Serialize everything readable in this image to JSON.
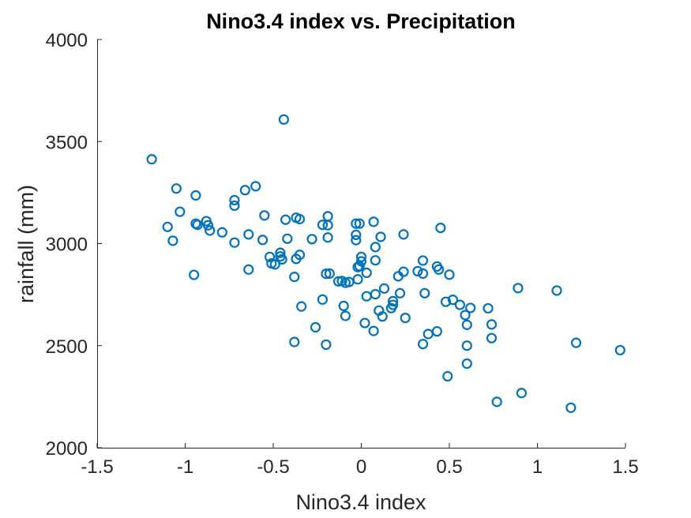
{
  "chart_data": {
    "type": "scatter",
    "title": "Nino3.4 index vs. Precipitation",
    "xlabel": "Nino3.4 index",
    "ylabel": "rainfall (mm)",
    "xlim": [
      -1.5,
      1.5
    ],
    "ylim": [
      2000,
      4000
    ],
    "xticks": [
      -1.5,
      -1,
      -0.5,
      0,
      0.5,
      1,
      1.5
    ],
    "xtick_labels": [
      "-1.5",
      "-1",
      "-0.5",
      "0",
      "0.5",
      "1",
      "1.5"
    ],
    "yticks": [
      2000,
      2500,
      3000,
      3500,
      4000
    ],
    "ytick_labels": [
      "2000",
      "2500",
      "3000",
      "3500",
      "4000"
    ],
    "grid": false,
    "marker": "open-circle",
    "color": "#0072bd",
    "points": [
      [
        -1.19,
        3413
      ],
      [
        -0.44,
        3608
      ],
      [
        -1.05,
        3270
      ],
      [
        -0.94,
        3236
      ],
      [
        -1.03,
        3156
      ],
      [
        -1.1,
        3082
      ],
      [
        -1.07,
        3014
      ],
      [
        -0.95,
        2847
      ],
      [
        -0.94,
        3098
      ],
      [
        -0.93,
        3092
      ],
      [
        -0.88,
        3110
      ],
      [
        -0.87,
        3090
      ],
      [
        -0.86,
        3064
      ],
      [
        -0.79,
        3055
      ],
      [
        -0.72,
        3213
      ],
      [
        -0.72,
        3186
      ],
      [
        -0.72,
        3005
      ],
      [
        -0.66,
        3262
      ],
      [
        -0.6,
        3281
      ],
      [
        -0.64,
        3045
      ],
      [
        -0.56,
        3018
      ],
      [
        -0.55,
        3138
      ],
      [
        -0.64,
        2873
      ],
      [
        -0.52,
        2935
      ],
      [
        -0.51,
        2903
      ],
      [
        -0.49,
        2898
      ],
      [
        -0.46,
        2955
      ],
      [
        -0.46,
        2937
      ],
      [
        -0.45,
        2923
      ],
      [
        -0.43,
        3117
      ],
      [
        -0.42,
        3024
      ],
      [
        -0.37,
        3127
      ],
      [
        -0.35,
        3120
      ],
      [
        -0.37,
        2925
      ],
      [
        -0.35,
        2945
      ],
      [
        -0.38,
        2837
      ],
      [
        -0.34,
        2692
      ],
      [
        -0.38,
        2518
      ],
      [
        -0.28,
        3022
      ],
      [
        -0.26,
        2590
      ],
      [
        -0.22,
        3092
      ],
      [
        -0.22,
        2726
      ],
      [
        -0.2,
        2852
      ],
      [
        -0.18,
        2853
      ],
      [
        -0.19,
        3134
      ],
      [
        -0.19,
        3090
      ],
      [
        -0.19,
        3030
      ],
      [
        -0.2,
        2505
      ],
      [
        -0.13,
        2815
      ],
      [
        -0.11,
        2817
      ],
      [
        -0.09,
        2808
      ],
      [
        -0.07,
        2812
      ],
      [
        -0.1,
        2695
      ],
      [
        -0.09,
        2646
      ],
      [
        -0.03,
        3098
      ],
      [
        -0.03,
        3043
      ],
      [
        -0.03,
        3017
      ],
      [
        -0.01,
        3098
      ],
      [
        -0.02,
        2885
      ],
      [
        -0.01,
        2890
      ],
      [
        0.0,
        2913
      ],
      [
        0.0,
        2935
      ],
      [
        -0.02,
        2825
      ],
      [
        0.03,
        2857
      ],
      [
        0.03,
        2742
      ],
      [
        0.02,
        2611
      ],
      [
        0.07,
        3107
      ],
      [
        0.08,
        2983
      ],
      [
        0.08,
        2918
      ],
      [
        0.08,
        2752
      ],
      [
        0.07,
        2572
      ],
      [
        0.1,
        2672
      ],
      [
        0.11,
        3033
      ],
      [
        0.13,
        2780
      ],
      [
        0.12,
        2643
      ],
      [
        0.17,
        2684
      ],
      [
        0.18,
        2700
      ],
      [
        0.18,
        2718
      ],
      [
        0.21,
        2840
      ],
      [
        0.22,
        2757
      ],
      [
        0.24,
        2862
      ],
      [
        0.24,
        3045
      ],
      [
        0.25,
        2636
      ],
      [
        0.32,
        2865
      ],
      [
        0.35,
        2917
      ],
      [
        0.35,
        2853
      ],
      [
        0.36,
        2757
      ],
      [
        0.35,
        2508
      ],
      [
        0.38,
        2557
      ],
      [
        0.43,
        2888
      ],
      [
        0.44,
        2873
      ],
      [
        0.45,
        3077
      ],
      [
        0.43,
        2570
      ],
      [
        0.48,
        2715
      ],
      [
        0.5,
        2848
      ],
      [
        0.49,
        2350
      ],
      [
        0.52,
        2725
      ],
      [
        0.56,
        2700
      ],
      [
        0.59,
        2650
      ],
      [
        0.6,
        2602
      ],
      [
        0.62,
        2685
      ],
      [
        0.6,
        2500
      ],
      [
        0.6,
        2412
      ],
      [
        0.72,
        2683
      ],
      [
        0.74,
        2604
      ],
      [
        0.74,
        2537
      ],
      [
        0.77,
        2225
      ],
      [
        0.89,
        2782
      ],
      [
        0.91,
        2268
      ],
      [
        1.11,
        2770
      ],
      [
        1.19,
        2196
      ],
      [
        1.22,
        2514
      ],
      [
        1.47,
        2478
      ]
    ]
  }
}
